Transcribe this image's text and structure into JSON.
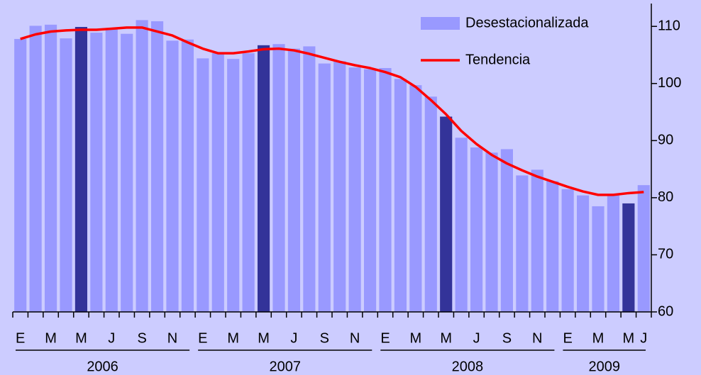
{
  "chart_data": {
    "type": "bar",
    "categories": [
      "E",
      null,
      "M",
      null,
      "M",
      null,
      "J",
      null,
      "S",
      null,
      "N",
      null,
      "E",
      null,
      "M",
      null,
      "M",
      null,
      "J",
      null,
      "S",
      null,
      "N",
      null,
      "E",
      null,
      "M",
      null,
      "M",
      null,
      "J",
      null,
      "S",
      null,
      "N",
      null,
      "E",
      null,
      "M",
      null,
      "M",
      "J"
    ],
    "years": [
      "2006",
      "2007",
      "2008",
      "2009"
    ],
    "series": [
      {
        "name": "Desestacionalizada",
        "color": "#9999ff",
        "bar_colors": [
          "#9999ff",
          "#9999ff",
          "#9999ff",
          "#9999ff",
          "#333399",
          "#9999ff",
          "#9999ff",
          "#9999ff",
          "#9999ff",
          "#9999ff",
          "#9999ff",
          "#9999ff",
          "#9999ff",
          "#9999ff",
          "#9999ff",
          "#9999ff",
          "#333399",
          "#9999ff",
          "#9999ff",
          "#9999ff",
          "#9999ff",
          "#9999ff",
          "#9999ff",
          "#9999ff",
          "#9999ff",
          "#9999ff",
          "#9999ff",
          "#9999ff",
          "#333399",
          "#9999ff",
          "#9999ff",
          "#9999ff",
          "#9999ff",
          "#9999ff",
          "#9999ff",
          "#9999ff",
          "#9999ff",
          "#9999ff",
          "#9999ff",
          "#9999ff",
          "#333399",
          "#9999ff"
        ],
        "values": [
          107.8,
          110.1,
          110.3,
          107.9,
          109.9,
          108.9,
          109.5,
          108.7,
          111.1,
          110.9,
          107.5,
          107.7,
          104.4,
          105.3,
          104.3,
          105.3,
          106.7,
          106.9,
          106.1,
          106.5,
          103.5,
          103.9,
          102.8,
          102.5,
          102.7,
          100.8,
          99.7,
          97.7,
          94.2,
          90.5,
          88.8,
          87.9,
          88.5,
          83.9,
          84.9,
          82.9,
          81.5,
          80.4,
          78.5,
          80.4,
          79.0,
          82.2
        ]
      },
      {
        "name": "Tendencia",
        "type": "line",
        "color": "#ff0000",
        "values": [
          107.8,
          108.6,
          109.1,
          109.3,
          109.4,
          109.4,
          109.6,
          109.8,
          109.8,
          109.1,
          108.4,
          107.2,
          106.1,
          105.3,
          105.3,
          105.6,
          106.0,
          106.1,
          105.8,
          105.2,
          104.5,
          103.8,
          103.2,
          102.7,
          102.0,
          101.1,
          99.4,
          97.1,
          94.6,
          91.7,
          89.4,
          87.5,
          86.0,
          84.8,
          83.7,
          82.8,
          81.9,
          81.1,
          80.5,
          80.5,
          80.8,
          81.0
        ]
      }
    ],
    "ylim": [
      60,
      114
    ],
    "yticks": [
      60,
      70,
      80,
      90,
      100,
      110
    ],
    "y_axis_side": "right",
    "legend": "top-right"
  }
}
